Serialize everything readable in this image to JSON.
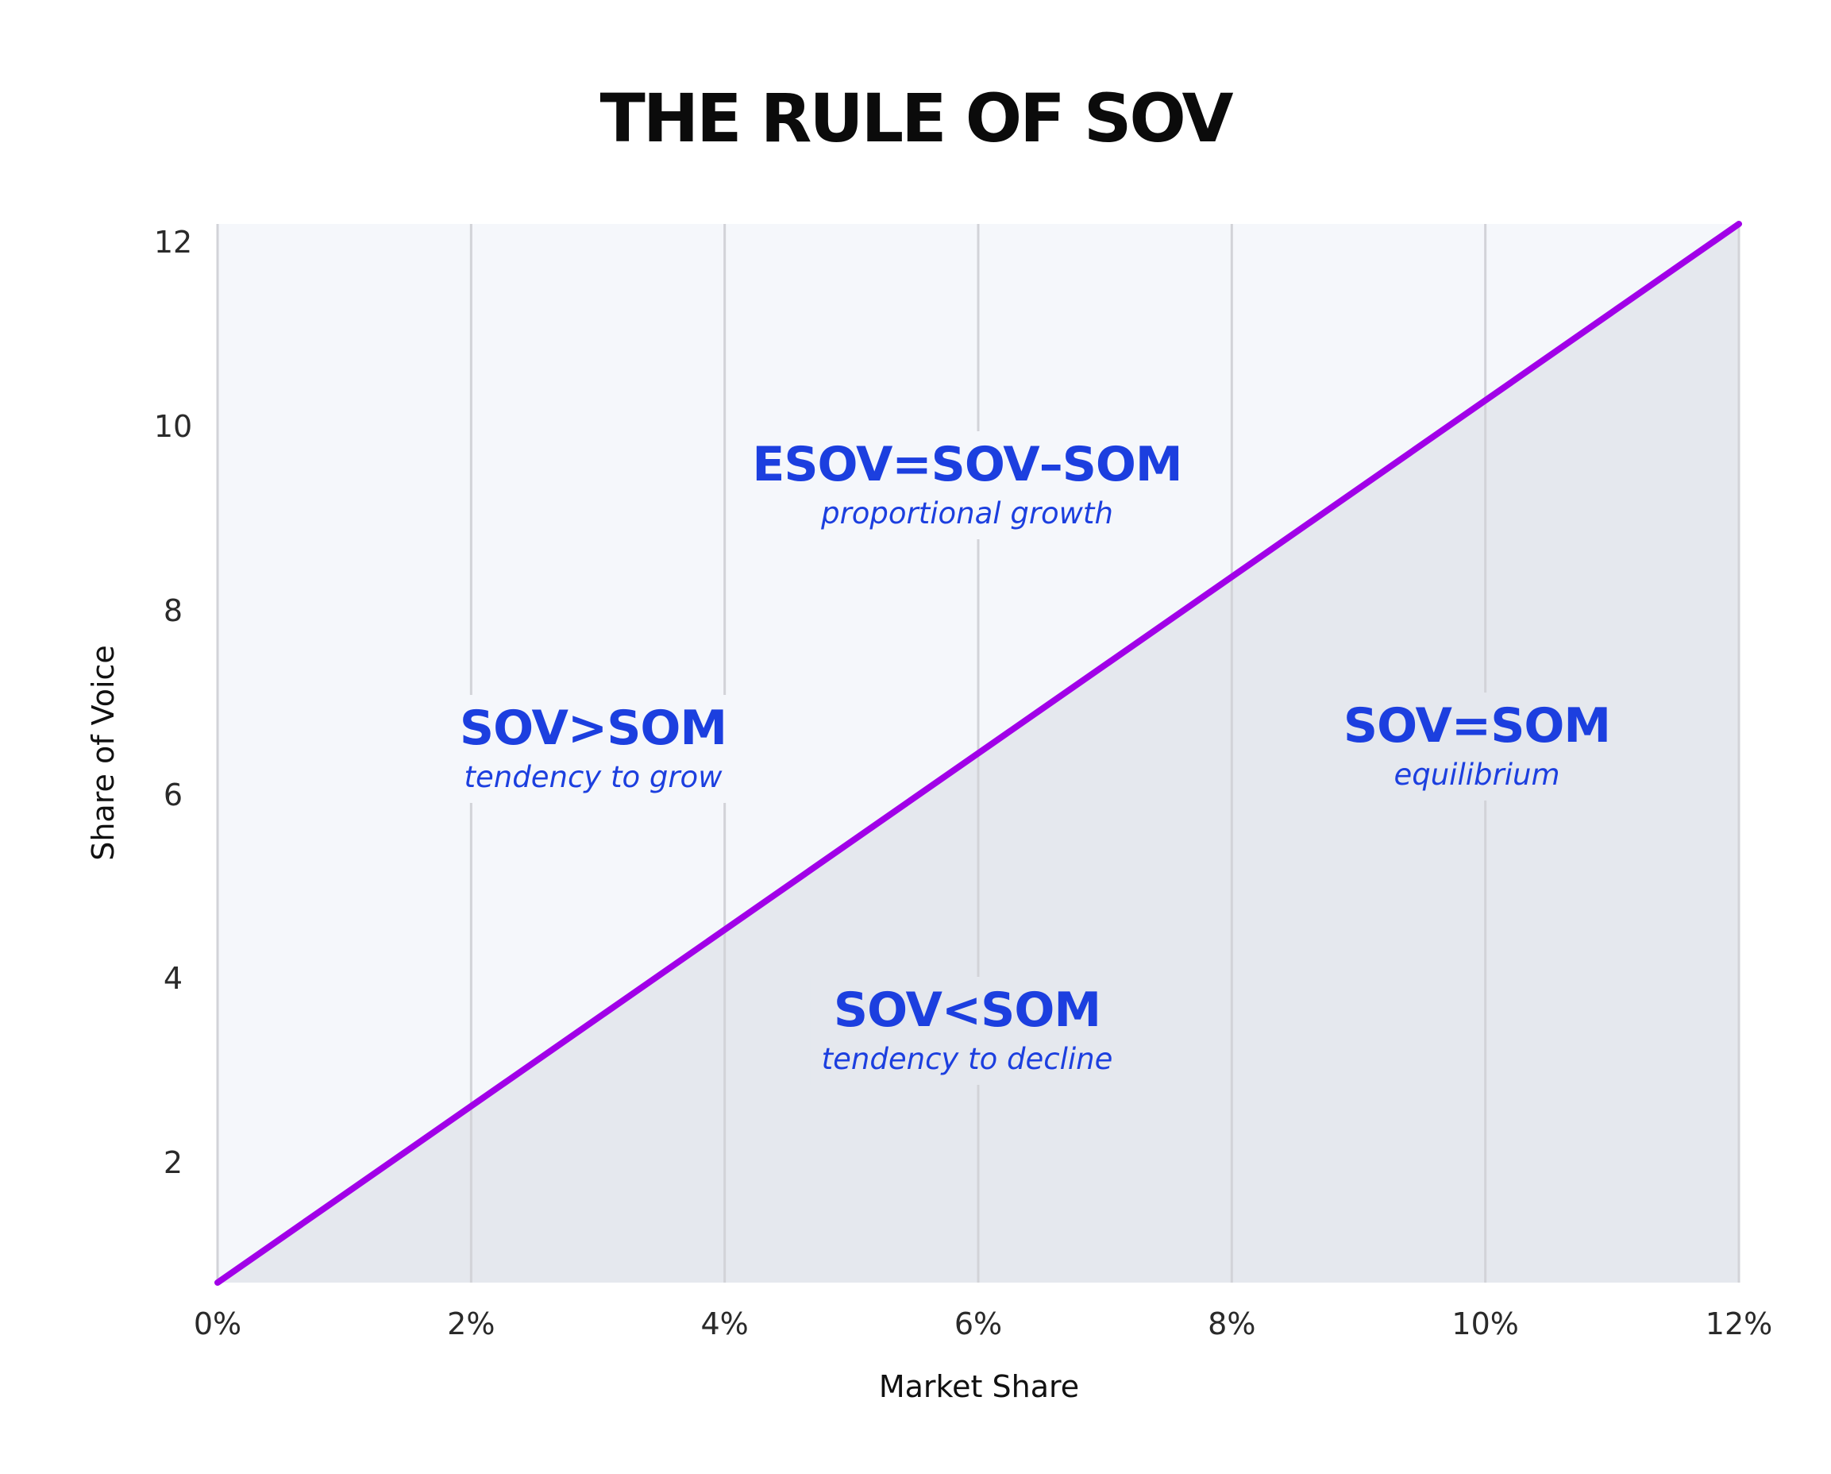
{
  "chart_data": {
    "type": "line",
    "title": "THE RULE OF SOV",
    "xlabel": "Market Share",
    "ylabel": "Share of Voice",
    "x_ticks": [
      "0%",
      "2%",
      "4%",
      "6%",
      "8%",
      "10%",
      "12%"
    ],
    "x_tick_values": [
      0,
      2,
      4,
      6,
      8,
      10,
      12
    ],
    "y_ticks": [
      "2",
      "4",
      "6",
      "8",
      "10",
      "12"
    ],
    "y_tick_values": [
      2,
      4,
      6,
      8,
      10,
      12
    ],
    "xlim": [
      0,
      12
    ],
    "ylim": [
      0.7,
      12.2
    ],
    "grid": "vertical",
    "series": [
      {
        "x": [
          0,
          12
        ],
        "y": [
          0.7,
          12.2
        ],
        "fill_below": true
      }
    ],
    "annotations": [
      {
        "heading": "ESOV=SOV–SOM",
        "caption": "proportional growth"
      },
      {
        "heading": "SOV>SOM",
        "caption": "tendency to grow"
      },
      {
        "heading": "SOV=SOM",
        "caption": "equilibrium"
      },
      {
        "heading": "SOV<SOM",
        "caption": "tendency to decline"
      }
    ],
    "colors": {
      "line": "#a100e8",
      "above_fill": "#f5f7fb",
      "below_fill": "#e5e8ee",
      "grid": "#d2d3d8",
      "annotation_text": "#1c3fdf"
    }
  }
}
